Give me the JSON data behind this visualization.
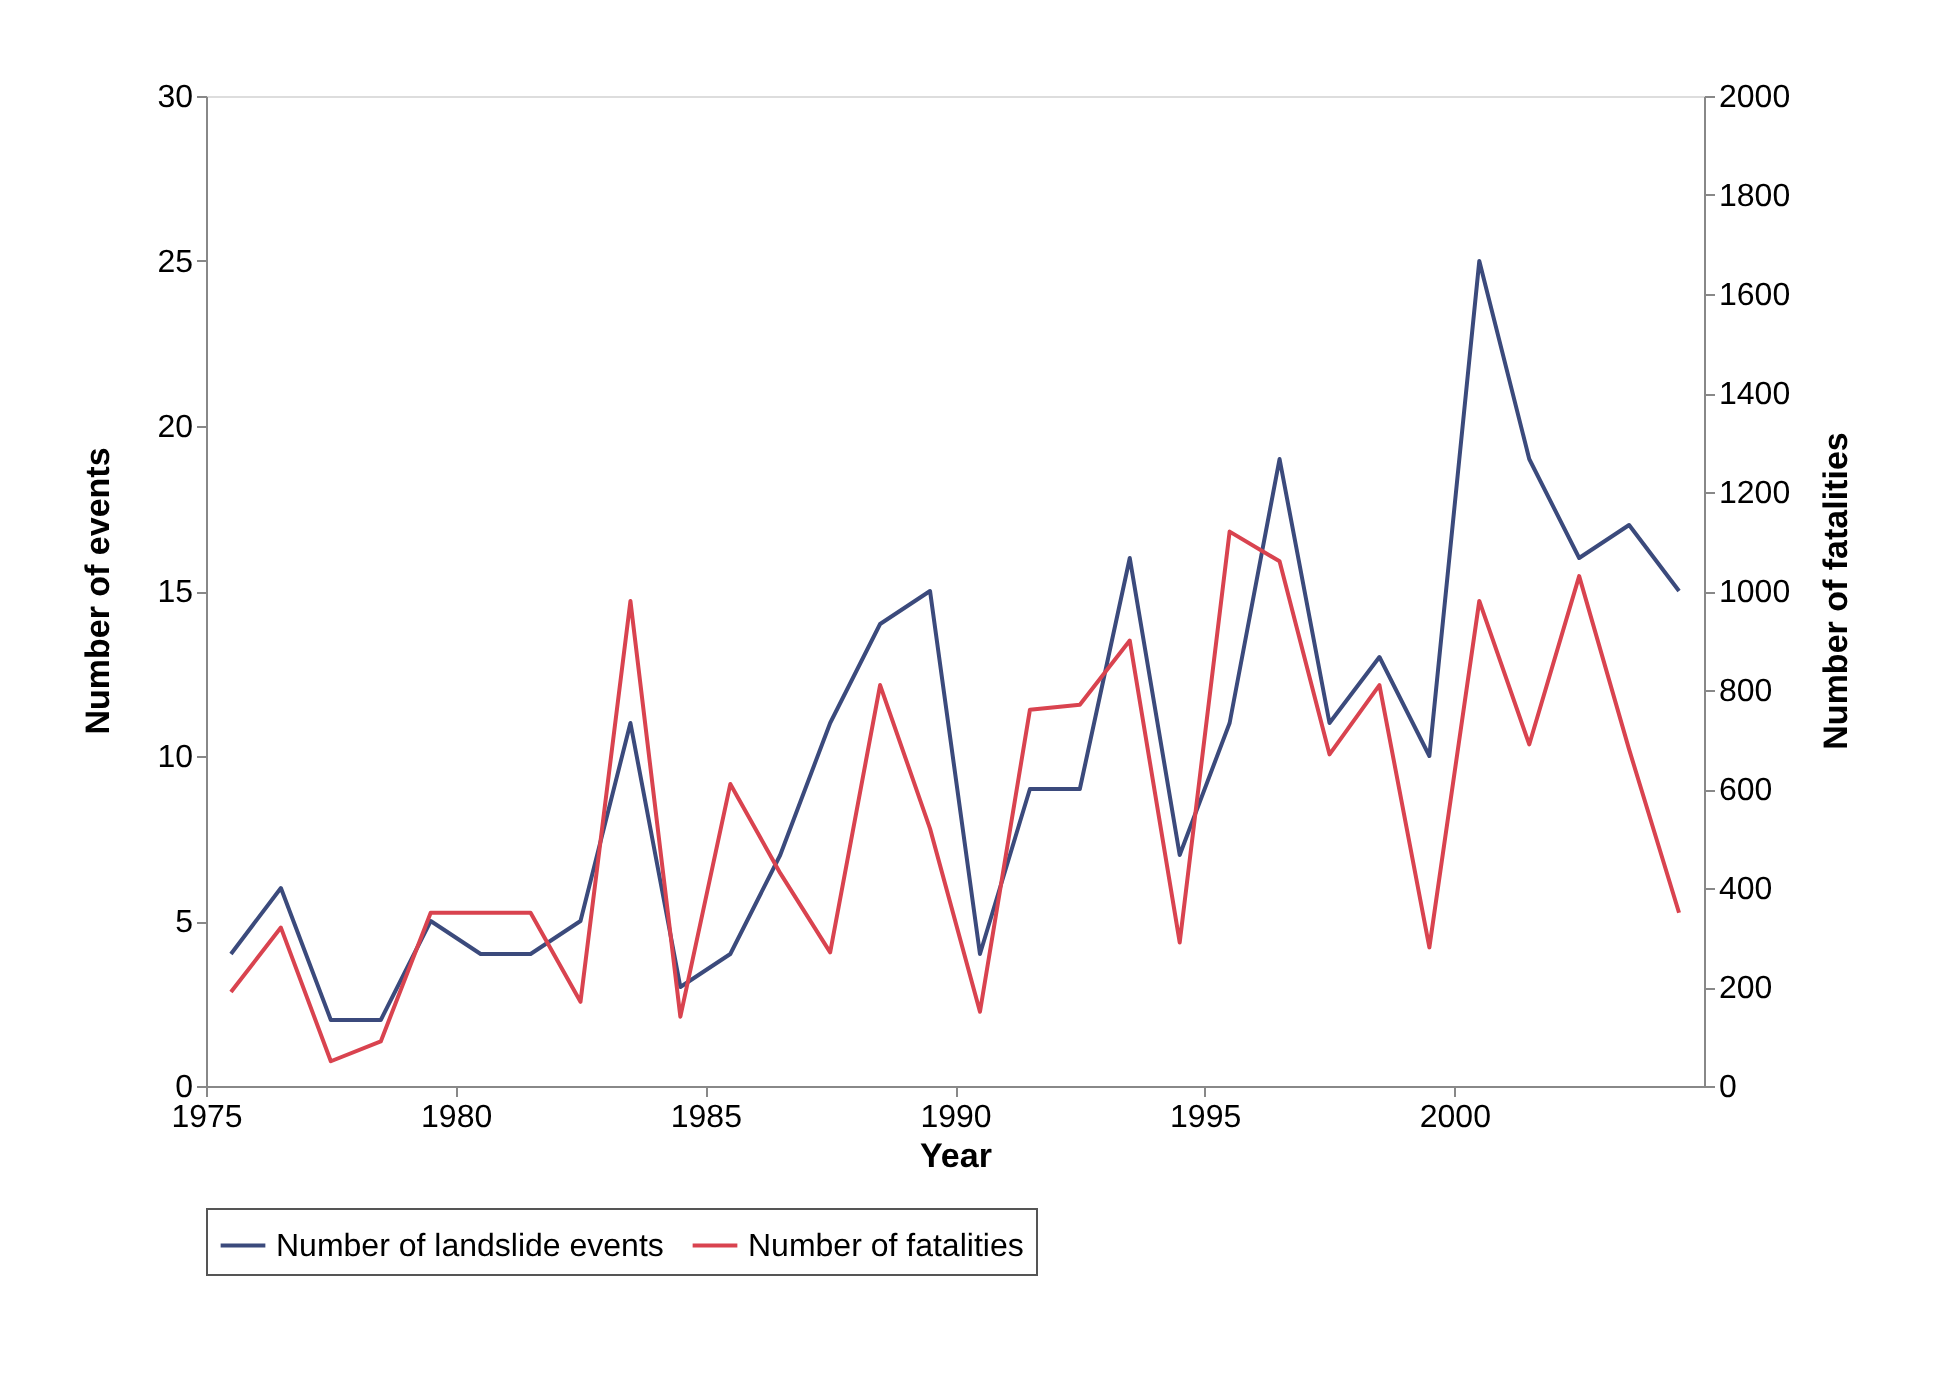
{
  "chart_data": {
    "type": "line",
    "xlabel": "Year",
    "ylabel": "Number of events",
    "y2label": "Number of fatalities",
    "x": [
      1975.5,
      1976.5,
      1977.5,
      1978.5,
      1979.5,
      1980.5,
      1981.5,
      1982.5,
      1983.5,
      1984.5,
      1985.5,
      1986.5,
      1987.5,
      1988.5,
      1989.5,
      1990.5,
      1991.5,
      1992.5,
      1993.5,
      1994.5,
      1995.5,
      1996.5,
      1997.5,
      1998.5,
      1999.5,
      2000.5,
      2001.5,
      2002.5,
      2003.5,
      2004.5
    ],
    "series": [
      {
        "name": "Number of landslide events",
        "color": "#3b4a7c",
        "values": [
          4,
          6,
          2,
          2,
          5,
          4,
          4,
          5,
          11,
          3,
          4,
          7,
          11,
          14,
          15,
          4,
          9,
          9,
          16,
          7,
          11,
          19,
          11,
          13,
          10,
          25,
          19,
          16,
          17,
          15
        ]
      },
      {
        "name": "Number of fatalities",
        "color": "#d9434f",
        "axis": "y2",
        "values": [
          190,
          320,
          50,
          90,
          350,
          350,
          350,
          170,
          980,
          140,
          610,
          430,
          270,
          810,
          520,
          150,
          760,
          770,
          900,
          290,
          1120,
          1060,
          670,
          810,
          280,
          980,
          690,
          1030,
          680,
          350
        ]
      }
    ],
    "xlim": [
      1975,
      2005
    ],
    "xticks": [
      1975,
      1980,
      1985,
      1990,
      1995,
      2000
    ],
    "ylim": [
      0,
      30
    ],
    "yticks": [
      0,
      5,
      10,
      15,
      20,
      25,
      30
    ],
    "y2lim": [
      0,
      2000
    ],
    "y2ticks": [
      0,
      200,
      400,
      600,
      800,
      1000,
      1200,
      1400,
      1600,
      1800,
      2000
    ],
    "grid": false,
    "legend": "bottom",
    "marker": "none",
    "line_style": "solid"
  }
}
